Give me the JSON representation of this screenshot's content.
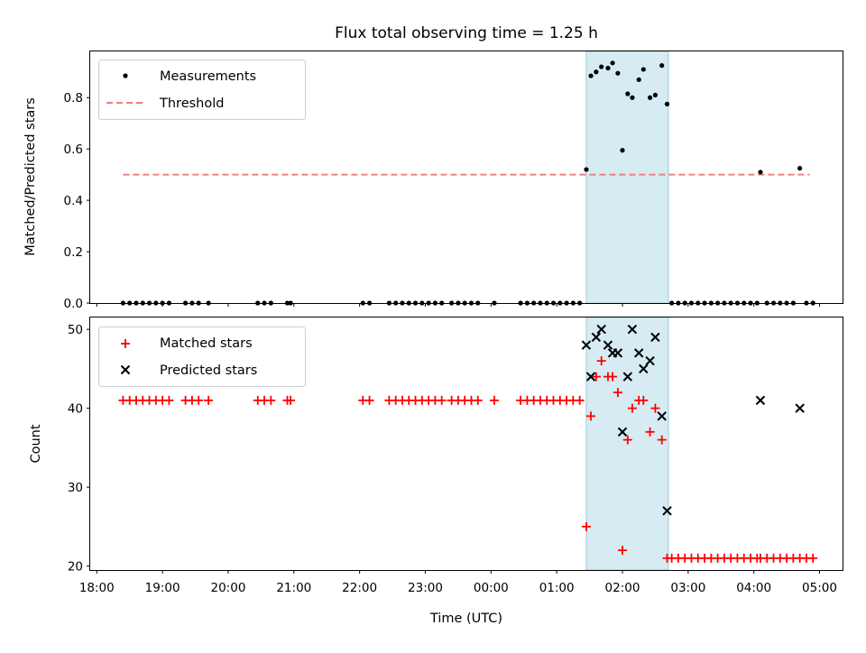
{
  "chart_data": {
    "title": "Flux total observing time = 1.25 h",
    "xlabel": "Time (UTC)",
    "x_unit": "hours since 18:00 UTC",
    "xlim": [
      -0.1,
      11.35
    ],
    "xticks": [
      {
        "value": 0,
        "label": "18:00"
      },
      {
        "value": 1,
        "label": "19:00"
      },
      {
        "value": 2,
        "label": "20:00"
      },
      {
        "value": 3,
        "label": "21:00"
      },
      {
        "value": 4,
        "label": "22:00"
      },
      {
        "value": 5,
        "label": "23:00"
      },
      {
        "value": 6,
        "label": "00:00"
      },
      {
        "value": 7,
        "label": "01:00"
      },
      {
        "value": 8,
        "label": "02:00"
      },
      {
        "value": 9,
        "label": "03:00"
      },
      {
        "value": 10,
        "label": "04:00"
      },
      {
        "value": 11,
        "label": "05:00"
      }
    ],
    "highlight_span": {
      "x0": 7.45,
      "x1": 8.7,
      "color": "#add8e6"
    },
    "top": {
      "type": "scatter",
      "ylabel": "Matched/Predicted stars",
      "ylim": [
        0,
        0.98
      ],
      "yticks": [
        {
          "value": 0,
          "label": "0.0"
        },
        {
          "value": 0.2,
          "label": "0.2"
        },
        {
          "value": 0.4,
          "label": "0.4"
        },
        {
          "value": 0.6,
          "label": "0.6"
        },
        {
          "value": 0.8,
          "label": "0.8"
        }
      ],
      "legend": {
        "placement": "top-left",
        "entries": [
          "Measurements",
          "Threshold"
        ]
      },
      "threshold": {
        "name": "Threshold",
        "value": 0.5,
        "x_start": 0.4,
        "x_end": 10.85,
        "color": "#f08080"
      },
      "series": [
        {
          "name": "Measurements",
          "color": "#000000",
          "x": [
            0.4,
            0.5,
            0.6,
            0.7,
            0.8,
            0.9,
            1.0,
            1.1,
            1.35,
            1.45,
            1.55,
            1.7,
            2.45,
            2.55,
            2.65,
            2.9,
            2.95,
            4.05,
            4.15,
            4.45,
            4.55,
            4.65,
            4.75,
            4.85,
            4.95,
            5.05,
            5.15,
            5.25,
            5.4,
            5.5,
            5.6,
            5.7,
            5.8,
            6.05,
            6.45,
            6.55,
            6.65,
            6.75,
            6.85,
            6.95,
            7.05,
            7.15,
            7.25,
            7.35,
            7.45,
            7.52,
            7.6,
            7.68,
            7.78,
            7.85,
            7.93,
            8.0,
            8.08,
            8.15,
            8.25,
            8.32,
            8.42,
            8.5,
            8.6,
            8.68,
            8.75,
            8.85,
            8.95,
            9.05,
            9.15,
            9.25,
            9.35,
            9.45,
            9.55,
            9.65,
            9.75,
            9.85,
            9.95,
            10.05,
            10.1,
            10.2,
            10.3,
            10.4,
            10.5,
            10.6,
            10.7,
            10.8,
            10.9
          ],
          "y": [
            0,
            0,
            0,
            0,
            0,
            0,
            0,
            0,
            0,
            0,
            0,
            0,
            0,
            0,
            0,
            0,
            0,
            0,
            0,
            0,
            0,
            0,
            0,
            0,
            0,
            0,
            0,
            0,
            0,
            0,
            0,
            0,
            0,
            0,
            0,
            0,
            0,
            0,
            0,
            0,
            0,
            0,
            0,
            0,
            0.52,
            0.885,
            0.9,
            0.92,
            0.915,
            0.935,
            0.895,
            0.595,
            0.815,
            0.8,
            0.87,
            0.91,
            0.8,
            0.81,
            0.925,
            0.775,
            0,
            0,
            0,
            0,
            0,
            0,
            0,
            0,
            0,
            0,
            0,
            0,
            0,
            0,
            0.51,
            0,
            0,
            0,
            0,
            0,
            0.525,
            0,
            0
          ]
        }
      ]
    },
    "bottom": {
      "type": "scatter",
      "ylabel": "Count",
      "ylim": [
        19.5,
        51.5
      ],
      "yticks": [
        {
          "value": 20,
          "label": "20"
        },
        {
          "value": 30,
          "label": "30"
        },
        {
          "value": 40,
          "label": "40"
        },
        {
          "value": 50,
          "label": "50"
        }
      ],
      "legend": {
        "placement": "top-left",
        "entries": [
          "Matched stars",
          "Predicted stars"
        ]
      },
      "series": [
        {
          "name": "Matched stars",
          "marker": "plus",
          "color": "#ff0000",
          "x": [
            0.4,
            0.5,
            0.6,
            0.7,
            0.8,
            0.9,
            1.0,
            1.1,
            1.35,
            1.45,
            1.55,
            1.7,
            2.45,
            2.55,
            2.65,
            2.9,
            2.95,
            4.05,
            4.15,
            4.45,
            4.55,
            4.65,
            4.75,
            4.85,
            4.95,
            5.05,
            5.15,
            5.25,
            5.4,
            5.5,
            5.6,
            5.7,
            5.8,
            6.05,
            6.45,
            6.55,
            6.65,
            6.75,
            6.85,
            6.95,
            7.05,
            7.15,
            7.25,
            7.35,
            7.45,
            7.52,
            7.6,
            7.68,
            7.78,
            7.85,
            7.93,
            8.0,
            8.08,
            8.15,
            8.25,
            8.32,
            8.42,
            8.5,
            8.6,
            8.68,
            8.75,
            8.85,
            8.95,
            9.05,
            9.15,
            9.25,
            9.35,
            9.45,
            9.55,
            9.65,
            9.75,
            9.85,
            9.95,
            10.05,
            10.1,
            10.2,
            10.3,
            10.4,
            10.5,
            10.6,
            10.7,
            10.8,
            10.9
          ],
          "y": [
            41,
            41,
            41,
            41,
            41,
            41,
            41,
            41,
            41,
            41,
            41,
            41,
            41,
            41,
            41,
            41,
            41,
            41,
            41,
            41,
            41,
            41,
            41,
            41,
            41,
            41,
            41,
            41,
            41,
            41,
            41,
            41,
            41,
            41,
            41,
            41,
            41,
            41,
            41,
            41,
            41,
            41,
            41,
            41,
            25,
            39,
            44,
            46,
            44,
            44,
            42,
            22,
            36,
            40,
            41,
            41,
            37,
            40,
            36,
            21,
            21,
            21,
            21,
            21,
            21,
            21,
            21,
            21,
            21,
            21,
            21,
            21,
            21,
            21,
            21,
            21,
            21,
            21,
            21,
            21,
            21,
            21,
            21
          ]
        },
        {
          "name": "Predicted stars",
          "marker": "x",
          "color": "#000000",
          "x": [
            7.45,
            7.52,
            7.6,
            7.68,
            7.78,
            7.85,
            7.93,
            8.0,
            8.08,
            8.15,
            8.25,
            8.32,
            8.42,
            8.5,
            8.6,
            8.68,
            10.1,
            10.7
          ],
          "y": [
            48,
            44,
            49,
            50,
            48,
            47,
            47,
            37,
            44,
            50,
            47,
            45,
            46,
            49,
            39,
            27,
            41,
            40
          ]
        }
      ]
    }
  }
}
